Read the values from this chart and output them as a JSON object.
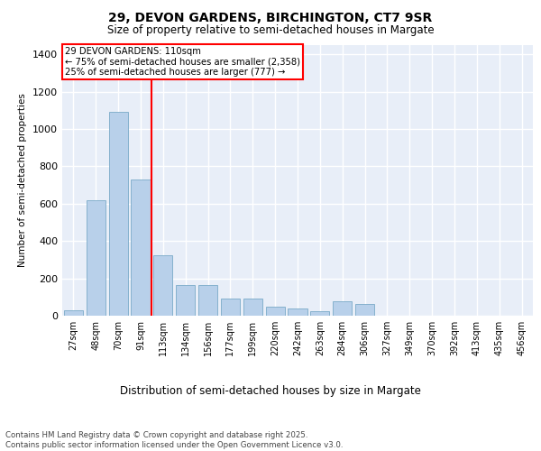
{
  "title_line1": "29, DEVON GARDENS, BIRCHINGTON, CT7 9SR",
  "title_line2": "Size of property relative to semi-detached houses in Margate",
  "xlabel": "Distribution of semi-detached houses by size in Margate",
  "ylabel": "Number of semi-detached properties",
  "categories": [
    "27sqm",
    "48sqm",
    "70sqm",
    "91sqm",
    "113sqm",
    "134sqm",
    "156sqm",
    "177sqm",
    "199sqm",
    "220sqm",
    "242sqm",
    "263sqm",
    "284sqm",
    "306sqm",
    "327sqm",
    "349sqm",
    "370sqm",
    "392sqm",
    "413sqm",
    "435sqm",
    "456sqm"
  ],
  "values": [
    30,
    620,
    1090,
    730,
    325,
    165,
    165,
    90,
    90,
    50,
    40,
    25,
    75,
    65,
    0,
    0,
    0,
    0,
    0,
    0,
    0
  ],
  "bar_color": "#b8d0ea",
  "bar_edge_color": "#7aaac8",
  "background_color": "#e8eef8",
  "grid_color": "#ffffff",
  "vline_color": "red",
  "vline_pos": 3.5,
  "annotation_text": "29 DEVON GARDENS: 110sqm\n← 75% of semi-detached houses are smaller (2,358)\n25% of semi-detached houses are larger (777) →",
  "annotation_box_color": "white",
  "annotation_box_edge": "red",
  "footer_text": "Contains HM Land Registry data © Crown copyright and database right 2025.\nContains public sector information licensed under the Open Government Licence v3.0.",
  "ylim": [
    0,
    1450
  ],
  "yticks": [
    0,
    200,
    400,
    600,
    800,
    1000,
    1200,
    1400
  ]
}
